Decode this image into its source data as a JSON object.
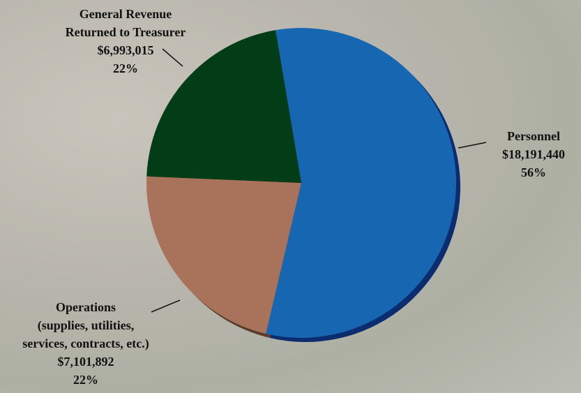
{
  "chart_data": {
    "type": "pie",
    "categories": [
      "Personnel",
      "Operations\n(supplies, utilities,\nservices, contracts, etc.)",
      "General Revenue\nReturned to Treasurer"
    ],
    "values": [
      18191440,
      7101892,
      6993015
    ],
    "value_labels": [
      "$18,191,440",
      "$7,101,892",
      "$6,993,015"
    ],
    "percentages": [
      {
        "value": 56,
        "label": "56%"
      },
      {
        "value": 22,
        "label": "22%"
      },
      {
        "value": 22,
        "label": "22%"
      }
    ],
    "colors": [
      "#1766b2",
      "#a8735a",
      "#033d17"
    ],
    "shadow_colors": [
      "#0b2c6e",
      "#5c3b2b",
      "#02290f"
    ]
  }
}
